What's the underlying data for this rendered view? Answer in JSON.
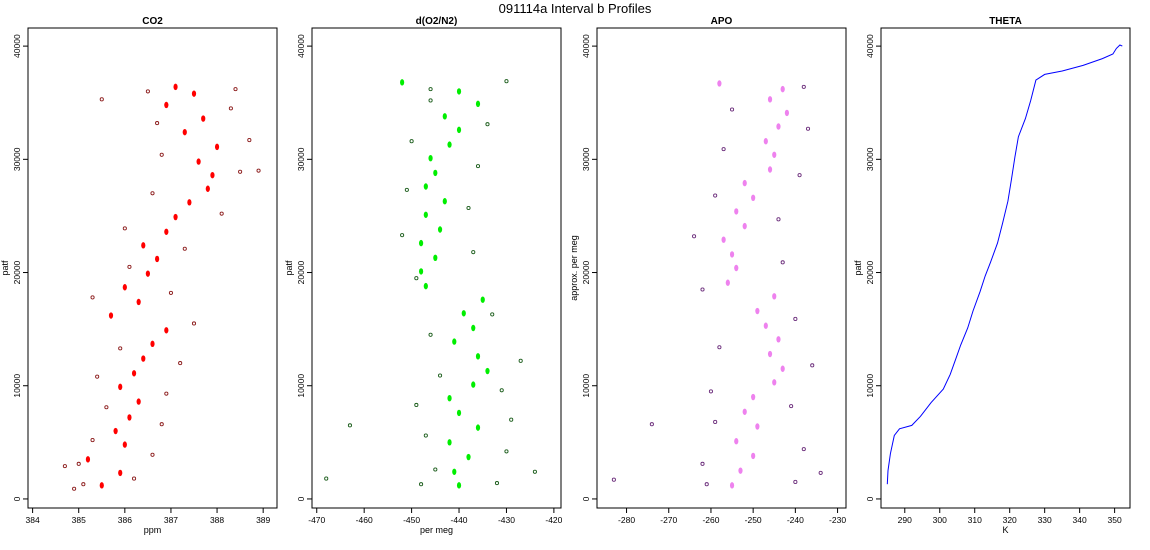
{
  "figure": {
    "title": "091114a   Interval b Profiles"
  },
  "chart_data": [
    {
      "type": "scatter",
      "title": "CO2",
      "xlabel": "ppm",
      "ylabel": "patf",
      "xlim": [
        383.9,
        389.3
      ],
      "ylim": [
        -800,
        41600
      ],
      "xticks": [
        384,
        385,
        386,
        387,
        388,
        389
      ],
      "yticks": [
        0,
        10000,
        20000,
        30000,
        40000
      ],
      "colors": {
        "fill": "#ff0000",
        "outline": "#8b1a1a"
      },
      "series": [
        {
          "values_desc": "filled points",
          "points": [
            [
              385.5,
              1200
            ],
            [
              385.9,
              2300
            ],
            [
              385.2,
              3500
            ],
            [
              386.0,
              4800
            ],
            [
              385.8,
              6000
            ],
            [
              386.1,
              7200
            ],
            [
              386.3,
              8600
            ],
            [
              385.9,
              9900
            ],
            [
              386.2,
              11100
            ],
            [
              386.4,
              12400
            ],
            [
              386.6,
              13700
            ],
            [
              386.9,
              14900
            ],
            [
              385.7,
              16200
            ],
            [
              386.3,
              17400
            ],
            [
              386.0,
              18700
            ],
            [
              386.5,
              19900
            ],
            [
              386.7,
              21200
            ],
            [
              386.4,
              22400
            ],
            [
              386.9,
              23600
            ],
            [
              387.1,
              24900
            ],
            [
              387.4,
              26200
            ],
            [
              387.8,
              27400
            ],
            [
              387.9,
              28600
            ],
            [
              387.6,
              29800
            ],
            [
              388.0,
              31100
            ],
            [
              387.3,
              32400
            ],
            [
              387.7,
              33600
            ],
            [
              386.9,
              34800
            ],
            [
              387.5,
              35800
            ],
            [
              387.1,
              36400
            ]
          ]
        },
        {
          "values_desc": "outlined points",
          "points": [
            [
              385.1,
              1300
            ],
            [
              386.2,
              1800
            ],
            [
              384.7,
              2900
            ],
            [
              386.6,
              3900
            ],
            [
              385.3,
              5200
            ],
            [
              386.8,
              6600
            ],
            [
              385.6,
              8100
            ],
            [
              386.9,
              9300
            ],
            [
              385.4,
              10800
            ],
            [
              387.2,
              12000
            ],
            [
              385.9,
              13300
            ],
            [
              387.5,
              15500
            ],
            [
              385.3,
              17800
            ],
            [
              387.0,
              18200
            ],
            [
              386.1,
              20500
            ],
            [
              387.3,
              22100
            ],
            [
              386.0,
              23900
            ],
            [
              388.1,
              25200
            ],
            [
              386.6,
              27000
            ],
            [
              388.5,
              28900
            ],
            [
              386.8,
              30400
            ],
            [
              388.7,
              31700
            ],
            [
              386.7,
              33200
            ],
            [
              388.3,
              34500
            ],
            [
              386.5,
              36000
            ],
            [
              388.4,
              36200
            ],
            [
              385.0,
              3100
            ],
            [
              384.9,
              900
            ],
            [
              388.9,
              29000
            ],
            [
              385.5,
              35300
            ]
          ]
        }
      ]
    },
    {
      "type": "scatter",
      "title": "d(O2/N2)",
      "xlabel": "per meg",
      "ylabel": "patf",
      "xlim": [
        -471,
        -418.5
      ],
      "ylim": [
        -800,
        41600
      ],
      "xticks": [
        -470,
        -460,
        -450,
        -440,
        -430,
        -420
      ],
      "yticks": [
        0,
        10000,
        20000,
        30000,
        40000
      ],
      "colors": {
        "fill": "#00ee00",
        "outline": "#1a5c1a"
      },
      "series": [
        {
          "values_desc": "filled points",
          "points": [
            [
              -440,
              1200
            ],
            [
              -441,
              2400
            ],
            [
              -438,
              3700
            ],
            [
              -442,
              5000
            ],
            [
              -436,
              6300
            ],
            [
              -440,
              7600
            ],
            [
              -442,
              8900
            ],
            [
              -437,
              10100
            ],
            [
              -434,
              11300
            ],
            [
              -436,
              12600
            ],
            [
              -441,
              13900
            ],
            [
              -437,
              15100
            ],
            [
              -439,
              16400
            ],
            [
              -435,
              17600
            ],
            [
              -447,
              18800
            ],
            [
              -448,
              20100
            ],
            [
              -445,
              21300
            ],
            [
              -448,
              22600
            ],
            [
              -444,
              23800
            ],
            [
              -447,
              25100
            ],
            [
              -443,
              26300
            ],
            [
              -447,
              27600
            ],
            [
              -445,
              28800
            ],
            [
              -446,
              30100
            ],
            [
              -442,
              31300
            ],
            [
              -440,
              32600
            ],
            [
              -443,
              33800
            ],
            [
              -436,
              34900
            ],
            [
              -440,
              36000
            ],
            [
              -452,
              36800
            ]
          ]
        },
        {
          "values_desc": "outlined points",
          "points": [
            [
              -448,
              1300
            ],
            [
              -432,
              1400
            ],
            [
              -445,
              2600
            ],
            [
              -430,
              4200
            ],
            [
              -447,
              5600
            ],
            [
              -429,
              7000
            ],
            [
              -449,
              8300
            ],
            [
              -431,
              9600
            ],
            [
              -444,
              10900
            ],
            [
              -427,
              12200
            ],
            [
              -446,
              14500
            ],
            [
              -433,
              16300
            ],
            [
              -449,
              19500
            ],
            [
              -437,
              21800
            ],
            [
              -452,
              23300
            ],
            [
              -438,
              25700
            ],
            [
              -451,
              27300
            ],
            [
              -436,
              29400
            ],
            [
              -450,
              31600
            ],
            [
              -434,
              33100
            ],
            [
              -446,
              35200
            ],
            [
              -430,
              36900
            ],
            [
              -463,
              6500
            ],
            [
              -468,
              1800
            ],
            [
              -424,
              2400
            ],
            [
              -446,
              36200
            ]
          ]
        }
      ]
    },
    {
      "type": "scatter",
      "title": "APO",
      "ylabel": "approx. per meg",
      "xlim": [
        -287,
        -228
      ],
      "ylim": [
        -800,
        41600
      ],
      "xticks": [
        -280,
        -270,
        -260,
        -250,
        -240,
        -230
      ],
      "yticks": [
        0,
        10000,
        20000,
        30000,
        40000
      ],
      "colors": {
        "fill": "#ee82ee",
        "outline": "#6a2b7a"
      },
      "series": [
        {
          "values_desc": "filled points",
          "points": [
            [
              -255,
              1200
            ],
            [
              -253,
              2500
            ],
            [
              -250,
              3800
            ],
            [
              -254,
              5100
            ],
            [
              -249,
              6400
            ],
            [
              -252,
              7700
            ],
            [
              -250,
              9000
            ],
            [
              -245,
              10300
            ],
            [
              -243,
              11500
            ],
            [
              -246,
              12800
            ],
            [
              -244,
              14100
            ],
            [
              -247,
              15300
            ],
            [
              -249,
              16600
            ],
            [
              -245,
              17900
            ],
            [
              -256,
              19100
            ],
            [
              -254,
              20400
            ],
            [
              -255,
              21600
            ],
            [
              -257,
              22900
            ],
            [
              -252,
              24100
            ],
            [
              -254,
              25400
            ],
            [
              -250,
              26600
            ],
            [
              -252,
              27900
            ],
            [
              -246,
              29100
            ],
            [
              -245,
              30400
            ],
            [
              -247,
              31600
            ],
            [
              -244,
              32900
            ],
            [
              -242,
              34100
            ],
            [
              -246,
              35300
            ],
            [
              -243,
              36200
            ],
            [
              -258,
              36700
            ]
          ]
        },
        {
          "values_desc": "outlined points",
          "points": [
            [
              -261,
              1300
            ],
            [
              -240,
              1500
            ],
            [
              -262,
              3100
            ],
            [
              -238,
              4400
            ],
            [
              -259,
              6800
            ],
            [
              -241,
              8200
            ],
            [
              -260,
              9500
            ],
            [
              -236,
              11800
            ],
            [
              -258,
              13400
            ],
            [
              -240,
              15900
            ],
            [
              -262,
              18500
            ],
            [
              -243,
              20900
            ],
            [
              -264,
              23200
            ],
            [
              -244,
              24700
            ],
            [
              -259,
              26800
            ],
            [
              -239,
              28600
            ],
            [
              -257,
              30900
            ],
            [
              -237,
              32700
            ],
            [
              -255,
              34400
            ],
            [
              -238,
              36400
            ],
            [
              -283,
              1700
            ],
            [
              -274,
              6600
            ],
            [
              -234,
              2300
            ]
          ]
        }
      ]
    },
    {
      "type": "line",
      "title": "THETA",
      "xlabel": "K",
      "ylabel": "patf",
      "xlim": [
        283.2,
        354.4
      ],
      "ylim": [
        -800,
        41600
      ],
      "xticks": [
        290,
        300,
        310,
        320,
        330,
        340,
        350
      ],
      "yticks": [
        0,
        10000,
        20000,
        30000,
        40000
      ],
      "colors": {
        "line": "#0000ff"
      },
      "series": [
        {
          "points": [
            [
              285.0,
              1300
            ],
            [
              285.2,
              2500
            ],
            [
              285.9,
              4000
            ],
            [
              287.0,
              5600
            ],
            [
              288.5,
              6200
            ],
            [
              292.0,
              6500
            ],
            [
              294.5,
              7300
            ],
            [
              297.5,
              8500
            ],
            [
              301.0,
              9700
            ],
            [
              303.0,
              11000
            ],
            [
              304.5,
              12300
            ],
            [
              306.0,
              13600
            ],
            [
              308.0,
              15100
            ],
            [
              309.5,
              16600
            ],
            [
              311.5,
              18300
            ],
            [
              313.0,
              19700
            ],
            [
              314.5,
              20900
            ],
            [
              316.5,
              22600
            ],
            [
              318.0,
              24400
            ],
            [
              319.5,
              26300
            ],
            [
              320.5,
              28200
            ],
            [
              321.5,
              30200
            ],
            [
              322.5,
              32000
            ],
            [
              324.5,
              33600
            ],
            [
              326.0,
              35200
            ],
            [
              327.5,
              37000
            ],
            [
              330.0,
              37500
            ],
            [
              335.0,
              37800
            ],
            [
              341.0,
              38300
            ],
            [
              346.5,
              38900
            ],
            [
              349.5,
              39300
            ],
            [
              350.5,
              39800
            ],
            [
              351.5,
              40100
            ],
            [
              352.2,
              40000
            ]
          ]
        }
      ]
    }
  ]
}
